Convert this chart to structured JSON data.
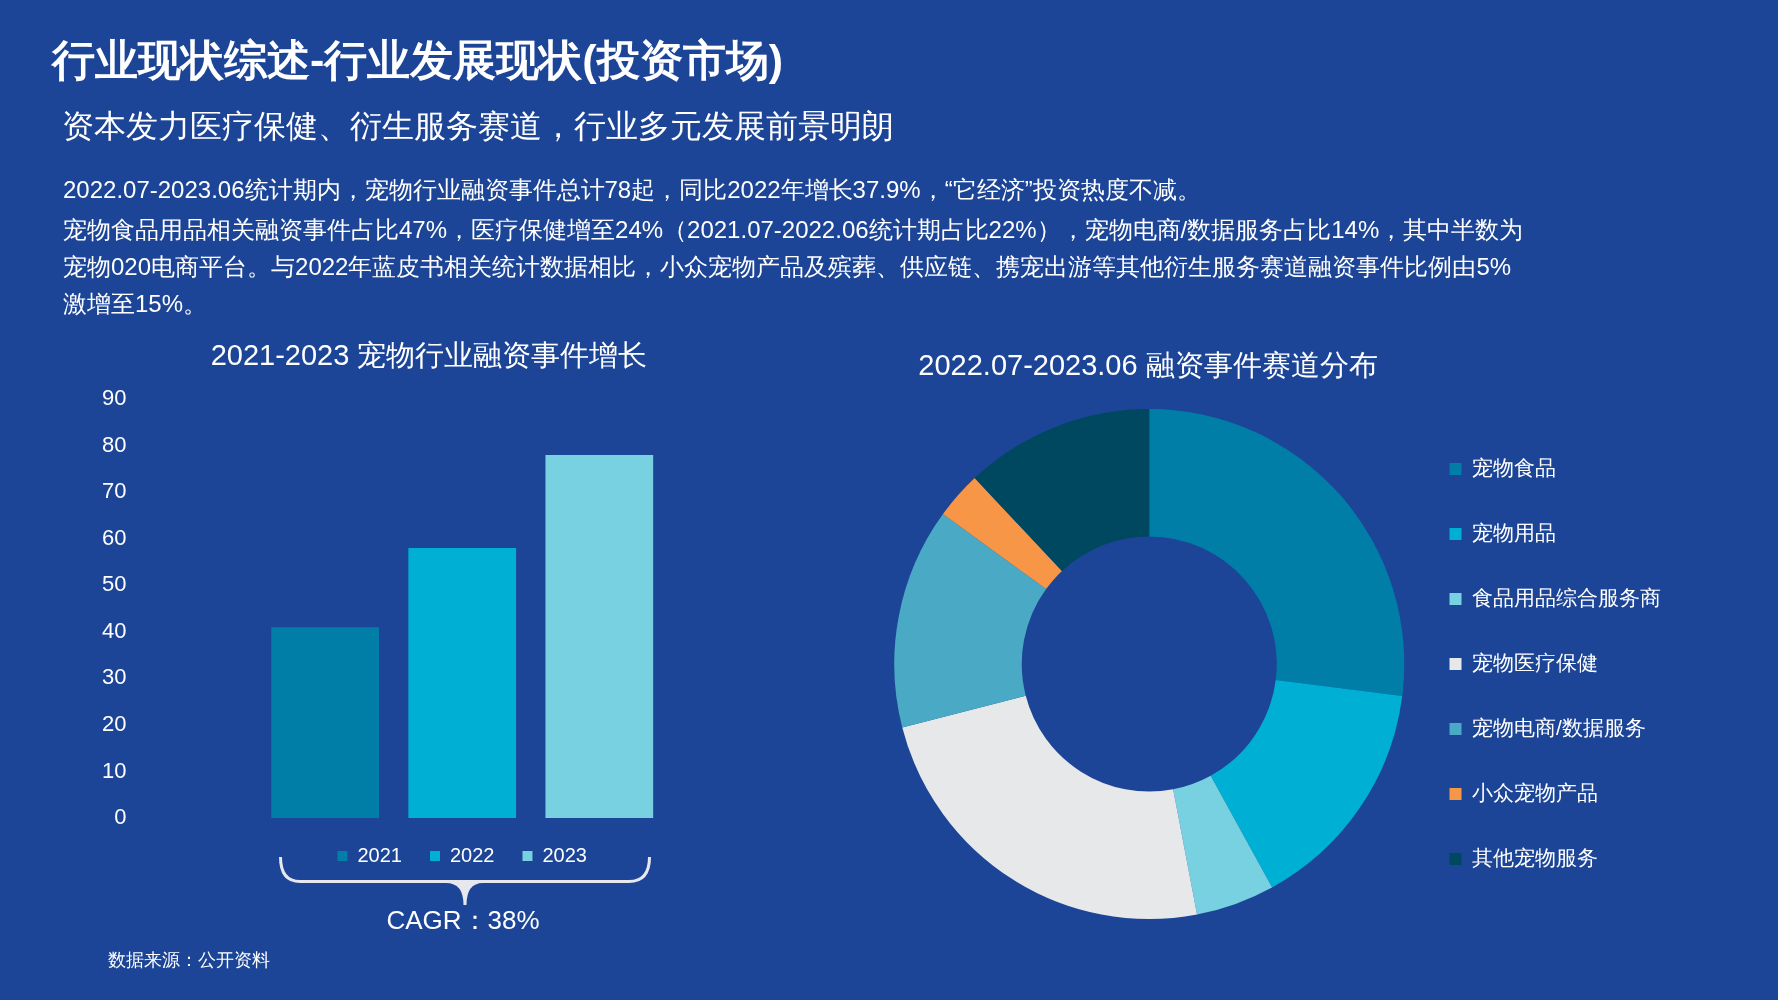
{
  "chart_data": [
    {
      "type": "other",
      "title": "行业现状综述-行业发展现状(投资市场)",
      "subtitle": "资本发力医疗保健、衍生服务赛道，行业多元发展前景明朗",
      "annotations": [
        "2022.07-2023.06统计期内，宠物行业融资事件总计78起，同比2022年增长37.9%，“它经济”投资热度不减。",
        "宠物食品用品相关融资事件占比47%，医疗保健增至24%（2021.07-2022.06统计期占比22%），宠物电商/数据服务占比14%，其中半数为宠物020电商平台。与2022年蓝皮书相关统计数据相比，小众宠物产品及殡葬、供应链、携宠出游等其他衍生服务赛道融资事件比例由5%激增至15%。"
      ]
    },
    {
      "type": "bar",
      "title": "2021-2023 宠物行业融资事件增长",
      "categories": [
        null
      ],
      "series": [
        {
          "name": "2021",
          "color": "#007ea7",
          "values": [
            41
          ]
        },
        {
          "name": "2022",
          "color": "#00b0d4",
          "values": [
            58
          ]
        },
        {
          "name": "2023",
          "color": "#77d1e0",
          "values": [
            78
          ]
        }
      ],
      "ylim": [
        0,
        90
      ],
      "yticks": [
        0,
        10,
        20,
        30,
        40,
        50,
        60,
        70,
        80,
        90
      ],
      "legend": "bottom",
      "annotations": [
        "CAGR：38%",
        "数据来源：公开资料"
      ]
    },
    {
      "type": "donut",
      "title": "2022.07-2023.06 融资事件赛道分布",
      "categories": [
        "宠物食品",
        "宠物用品",
        "食品用品综合服务商",
        "宠物医疗保健",
        "宠物电商/数据服务",
        "小众宠物产品",
        "其他宠物服务"
      ],
      "values": [
        27,
        15,
        5,
        24,
        14,
        3,
        12
      ],
      "colors": [
        "#007ea7",
        "#00b0d4",
        "#77d1e0",
        "#e7e8ea",
        "#4aaac6",
        "#f79646",
        "#00485f"
      ],
      "legend": "right"
    }
  ]
}
